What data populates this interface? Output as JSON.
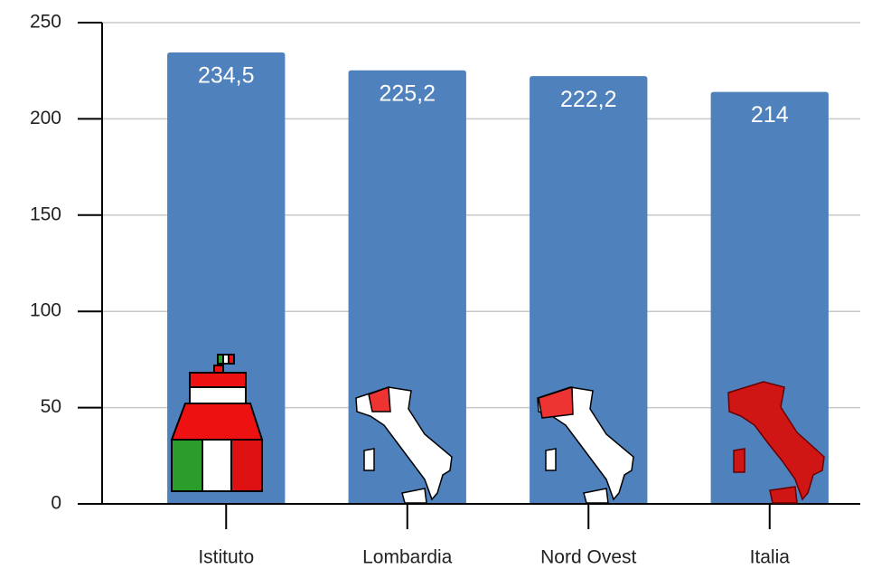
{
  "chart_data": {
    "type": "bar",
    "categories": [
      "Istituto",
      "Lombardia",
      "Nord Ovest",
      "Italia"
    ],
    "values": [
      234.5,
      225.2,
      222.2,
      214
    ],
    "value_labels": [
      "234,5",
      "225,2",
      "222,2",
      "214"
    ],
    "color": "#4f81bd",
    "ylim": [
      0,
      250
    ],
    "yticks": [
      0,
      50,
      100,
      150,
      200,
      250
    ],
    "grid": true
  }
}
